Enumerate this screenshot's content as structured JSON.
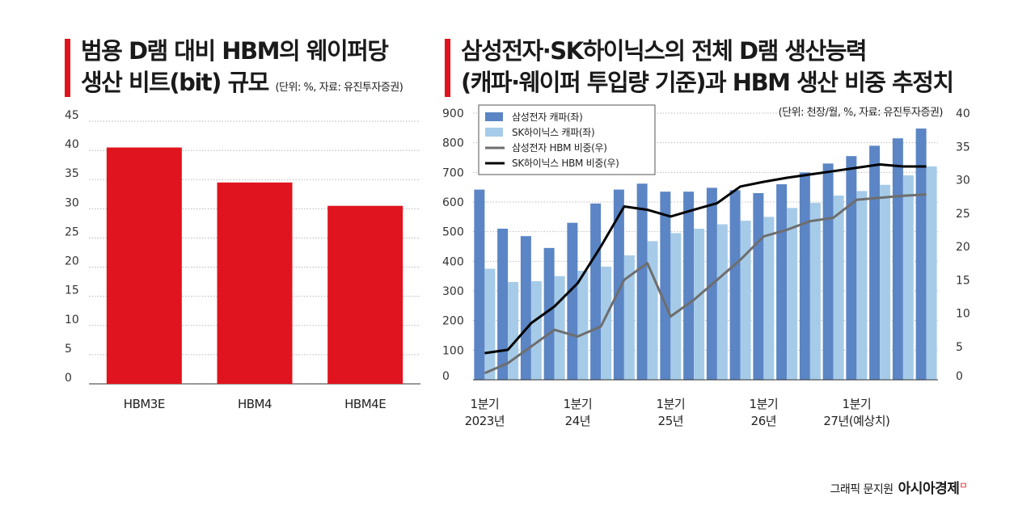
{
  "left": {
    "title_line1": "범용 D램 대비 HBM의 웨이퍼당",
    "title_line2": "생산 비트(bit) 규모",
    "note": "(단위: %, 자료: 유진투자증권)"
  },
  "right": {
    "title_line1": "삼성전자·SK하이닉스의 전체 D램 생산능력",
    "title_line2": "(캐파·웨이퍼 투입량 기준)과 HBM 생산 비중 추정치",
    "note": "(단위: 천장/월, %, 자료: 유진투자증권)"
  },
  "footer": {
    "credit": "그래픽 문지원",
    "brand": "아시아경제",
    "brand_mark": "ㅁ"
  },
  "colors": {
    "red": "#e0141e",
    "samsung_bar": "#5b85c4",
    "sk_bar": "#a6cbe8",
    "samsung_line": "#6e6e6e",
    "sk_line": "#000000"
  },
  "chart_data": [
    {
      "type": "bar",
      "categories": [
        "HBM3E",
        "HBM4",
        "HBM4E"
      ],
      "values": [
        40.5,
        34.5,
        30.5
      ],
      "ylim": [
        0,
        45
      ],
      "yticks": [
        0,
        5,
        10,
        15,
        20,
        25,
        30,
        35,
        40,
        45
      ],
      "grid": true,
      "color": "#e0141e"
    },
    {
      "type": "bar",
      "x": [
        "1Q23",
        "2Q23",
        "3Q23",
        "4Q23",
        "1Q24",
        "2Q24",
        "3Q24",
        "4Q24",
        "1Q25",
        "2Q25",
        "3Q25",
        "4Q25",
        "1Q26",
        "2Q26",
        "3Q26",
        "4Q26",
        "1Q27",
        "2Q27",
        "3Q27",
        "4Q27"
      ],
      "x_tick_labels": [
        {
          "index": 0,
          "line1": "1분기",
          "line2": "2023년"
        },
        {
          "index": 4,
          "line1": "1분기",
          "line2": "24년"
        },
        {
          "index": 8,
          "line1": "1분기",
          "line2": "25년"
        },
        {
          "index": 12,
          "line1": "1분기",
          "line2": "26년"
        },
        {
          "index": 16,
          "line1": "1분기",
          "line2": "27년(예상치)"
        }
      ],
      "series": [
        {
          "name": "삼성전자 캐파(좌)",
          "type": "bar",
          "axis": "left",
          "color": "#5b85c4",
          "values": [
            642,
            510,
            485,
            445,
            530,
            595,
            642,
            662,
            635,
            635,
            648,
            640,
            630,
            660,
            700,
            730,
            755,
            790,
            815,
            848
          ]
        },
        {
          "name": "SK하이닉스 캐파(좌)",
          "type": "bar",
          "axis": "left",
          "color": "#a6cbe8",
          "values": [
            375,
            330,
            333,
            350,
            368,
            382,
            420,
            468,
            495,
            510,
            525,
            537,
            550,
            580,
            597,
            622,
            637,
            658,
            690,
            720
          ]
        },
        {
          "name": "삼성전자 HBM 비중(우)",
          "type": "line",
          "axis": "right",
          "color": "#6e6e6e",
          "values": [
            1.0,
            2.5,
            5.0,
            7.5,
            6.5,
            8.0,
            15.0,
            17.5,
            9.5,
            12.0,
            15.0,
            18.0,
            21.5,
            22.5,
            23.8,
            24.3,
            27.0,
            27.3,
            27.6,
            27.8
          ]
        },
        {
          "name": "SK하이닉스 HBM 비중(우)",
          "type": "line",
          "axis": "right",
          "color": "#000000",
          "values": [
            4.0,
            4.5,
            8.5,
            11.0,
            14.5,
            20.0,
            26.0,
            25.5,
            24.5,
            25.5,
            26.5,
            29.0,
            29.7,
            30.3,
            30.8,
            31.3,
            31.8,
            32.3,
            32.0,
            32.0
          ]
        }
      ],
      "yleft": {
        "lim": [
          0,
          900
        ],
        "ticks": [
          0,
          100,
          200,
          300,
          400,
          500,
          600,
          700,
          800,
          900
        ]
      },
      "yright": {
        "lim": [
          0,
          40
        ],
        "ticks": [
          0,
          5,
          10,
          15,
          20,
          25,
          30,
          35,
          40
        ]
      },
      "legend": "top-left",
      "grid": true
    }
  ]
}
